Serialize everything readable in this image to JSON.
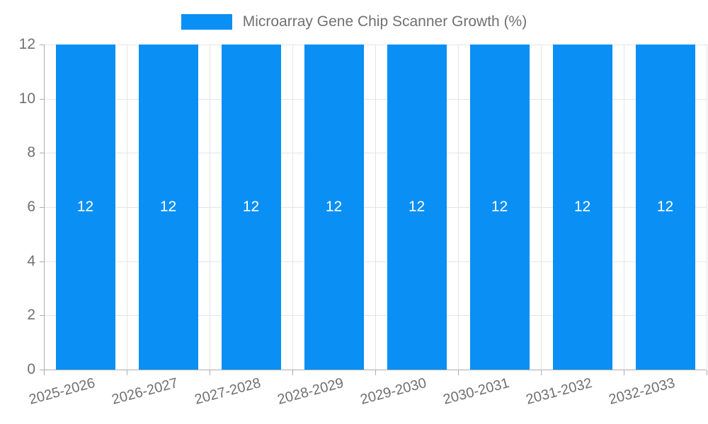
{
  "chart_data": {
    "type": "bar",
    "title": "Microarray Gene Chip Scanner Growth (%)",
    "categories": [
      "2025-2026",
      "2026-2027",
      "2027-2028",
      "2028-2029",
      "2029-2030",
      "2030-2031",
      "2031-2032",
      "2032-2033"
    ],
    "values": [
      12,
      12,
      12,
      12,
      12,
      12,
      12,
      12
    ],
    "bar_value_labels": [
      "12",
      "12",
      "12",
      "12",
      "12",
      "12",
      "12",
      "12"
    ],
    "xlabel": "",
    "ylabel": "",
    "ylim": [
      0,
      12
    ],
    "yticks": [
      0,
      2,
      4,
      6,
      8,
      10,
      12
    ],
    "grid": true,
    "legend_position": "top",
    "x_label_rotation_deg": -15,
    "colors": {
      "bar": "#0A8FF5",
      "bar_label_text": "#FFFFFF",
      "axis_text": "#707070",
      "grid_line": "#E4E4E4",
      "axis_line": "#ADADAD"
    }
  }
}
